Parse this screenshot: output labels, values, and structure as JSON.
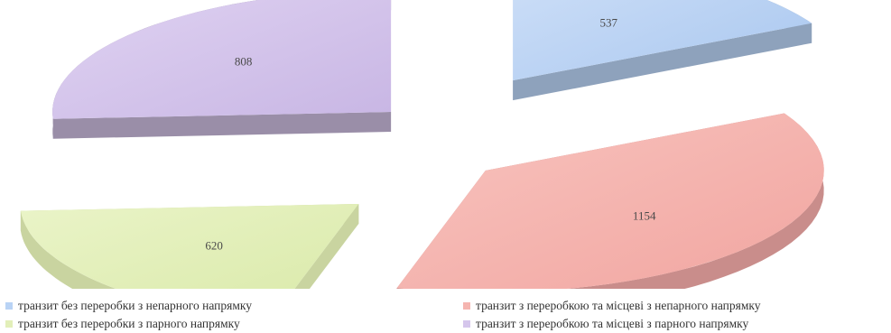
{
  "chart_data": {
    "type": "pie",
    "style": "exploded-3d",
    "slices": [
      {
        "label": "транзит без переробки з непарного напрямку",
        "value": 537,
        "color": "#b9d3f5"
      },
      {
        "label": "транзит з переробкою та місцеві з непарного напрямку",
        "value": 1154,
        "color": "#f5b5b0"
      },
      {
        "label": "транзит без переробки з парного напрямку",
        "value": 620,
        "color": "#e2efb9"
      },
      {
        "label": "транзит з переробкою та місцеві з парного напрямку",
        "value": 808,
        "color": "#d5c6ec"
      }
    ],
    "legend_position": "bottom"
  }
}
